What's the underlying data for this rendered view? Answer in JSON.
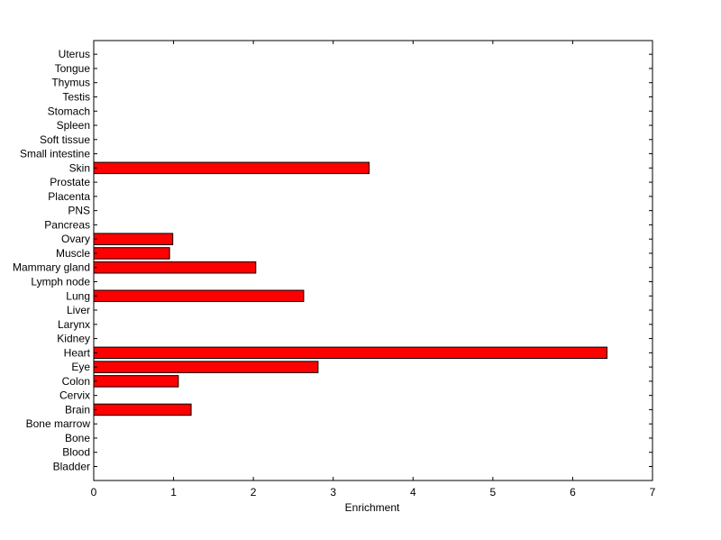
{
  "chart_data": {
    "type": "bar",
    "orientation": "horizontal",
    "categories": [
      "Bladder",
      "Blood",
      "Bone",
      "Bone marrow",
      "Brain",
      "Cervix",
      "Colon",
      "Eye",
      "Heart",
      "Kidney",
      "Larynx",
      "Liver",
      "Lung",
      "Lymph node",
      "Mammary gland",
      "Muscle",
      "Ovary",
      "Pancreas",
      "PNS",
      "Placenta",
      "Prostate",
      "Skin",
      "Small intestine",
      "Soft tissue",
      "Spleen",
      "Stomach",
      "Testis",
      "Thymus",
      "Tongue",
      "Uterus"
    ],
    "values": [
      0,
      0,
      0,
      0,
      1.22,
      0,
      1.06,
      2.81,
      6.43,
      0,
      0,
      0,
      2.63,
      0,
      2.03,
      0.95,
      0.99,
      0,
      0,
      0,
      0,
      3.45,
      0,
      0,
      0,
      0,
      0,
      0,
      0,
      0
    ],
    "title": "",
    "xlabel": "Enrichment",
    "ylabel": "",
    "xlim": [
      0,
      7
    ],
    "xticks": [
      "0",
      "1",
      "2",
      "3",
      "4",
      "5",
      "6",
      "7"
    ],
    "grid": false,
    "bar_color": "#ff0000",
    "edge_color": "#000000"
  }
}
